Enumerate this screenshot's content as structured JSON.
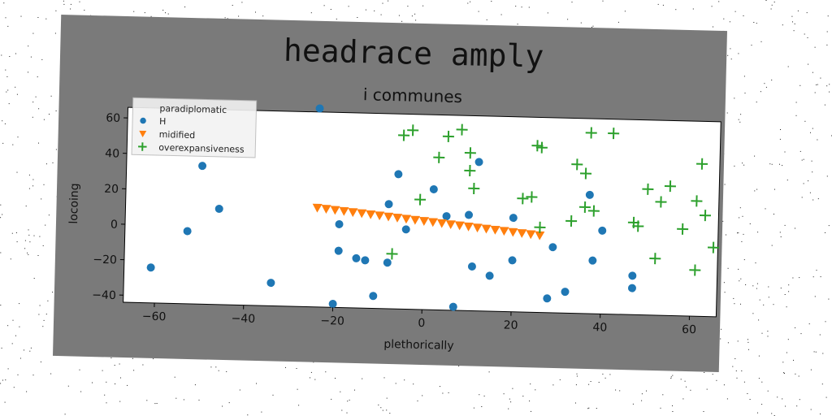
{
  "chart_data": {
    "type": "scatter",
    "title": "headrace amply",
    "subtitle": "i communes",
    "xlabel": "plethorically",
    "ylabel": "locoing",
    "xlim": [
      -67,
      66
    ],
    "ylim": [
      -44,
      66
    ],
    "xticks": [
      -60,
      -40,
      -20,
      0,
      20,
      40,
      60
    ],
    "yticks": [
      -40,
      -20,
      0,
      20,
      40,
      60
    ],
    "grid": false,
    "legend_position": "top-left",
    "series": [
      {
        "name": "paradiplomatic",
        "marker": "none",
        "color": "#888888",
        "points": []
      },
      {
        "name": "H",
        "marker": "circle",
        "color": "#1f77b4",
        "points": [
          [
            -24,
            68
          ],
          [
            -50,
            34
          ],
          [
            -46,
            10
          ],
          [
            -53,
            -3
          ],
          [
            -61,
            -24
          ],
          [
            -34,
            -31
          ],
          [
            -20,
            -42
          ],
          [
            -19,
            3
          ],
          [
            -19,
            -12
          ],
          [
            -15,
            -16
          ],
          [
            -13,
            -17
          ],
          [
            -11,
            -37
          ],
          [
            -8,
            15
          ],
          [
            -8,
            -18
          ],
          [
            -6,
            32
          ],
          [
            -4,
            1
          ],
          [
            2,
            24
          ],
          [
            5,
            9
          ],
          [
            7,
            -42
          ],
          [
            10,
            10
          ],
          [
            12,
            40
          ],
          [
            11,
            -19
          ],
          [
            15,
            -24
          ],
          [
            20,
            9
          ],
          [
            20,
            -15
          ],
          [
            29,
            -7
          ],
          [
            28,
            -36
          ],
          [
            32,
            -32
          ],
          [
            37,
            23
          ],
          [
            38,
            -14
          ],
          [
            40,
            3
          ],
          [
            47,
            -22
          ],
          [
            47,
            -29
          ]
        ]
      },
      {
        "name": "midified",
        "marker": "triangle-down",
        "color": "#ff7f0e",
        "points": [
          [
            -24,
            12
          ],
          [
            -22,
            11.5
          ],
          [
            -20,
            11
          ],
          [
            -18,
            10.5
          ],
          [
            -16,
            10
          ],
          [
            -14,
            9.5
          ],
          [
            -12,
            9
          ],
          [
            -10,
            8.5
          ],
          [
            -8,
            8
          ],
          [
            -6,
            7.5
          ],
          [
            -4,
            7
          ],
          [
            -2,
            6.5
          ],
          [
            0,
            6
          ],
          [
            2,
            5.5
          ],
          [
            4,
            5
          ],
          [
            6,
            4.5
          ],
          [
            8,
            4
          ],
          [
            10,
            3.5
          ],
          [
            12,
            3
          ],
          [
            14,
            2.5
          ],
          [
            16,
            2
          ],
          [
            18,
            1.5
          ],
          [
            20,
            1
          ],
          [
            22,
            0.5
          ],
          [
            24,
            0
          ],
          [
            26,
            -0.5
          ]
        ]
      },
      {
        "name": "overexpansiveness",
        "marker": "plus",
        "color": "#2ca02c",
        "points": [
          [
            -5,
            54
          ],
          [
            -3,
            57
          ],
          [
            5,
            54
          ],
          [
            8,
            58
          ],
          [
            10,
            45
          ],
          [
            10,
            35
          ],
          [
            11,
            25
          ],
          [
            3,
            42
          ],
          [
            -1,
            18
          ],
          [
            -7,
            -13
          ],
          [
            22,
            20
          ],
          [
            24,
            21
          ],
          [
            25,
            50
          ],
          [
            26,
            49
          ],
          [
            26,
            4
          ],
          [
            33,
            8
          ],
          [
            34,
            40
          ],
          [
            36,
            35
          ],
          [
            36,
            16
          ],
          [
            37,
            58
          ],
          [
            38,
            14
          ],
          [
            42,
            58
          ],
          [
            47,
            8
          ],
          [
            48,
            6
          ],
          [
            50,
            27
          ],
          [
            52,
            -12
          ],
          [
            53,
            20
          ],
          [
            55,
            29
          ],
          [
            58,
            5
          ],
          [
            61,
            21
          ],
          [
            62,
            42
          ],
          [
            63,
            13
          ],
          [
            65,
            -5
          ],
          [
            61,
            -18
          ]
        ]
      }
    ]
  }
}
